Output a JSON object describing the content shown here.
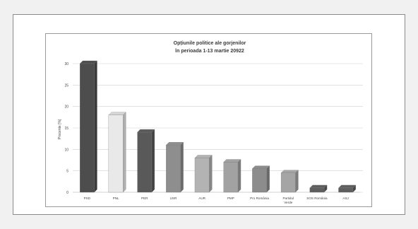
{
  "chart_data": {
    "type": "bar",
    "title_lines": [
      "Opțiunile politice ale gorjenilor",
      "în perioada 1-13 martie 20922"
    ],
    "ylabel": "Procente [%]",
    "xlabel": "",
    "ylim": [
      0,
      30
    ],
    "yticks": [
      0,
      5,
      10,
      15,
      20,
      25,
      30
    ],
    "grid": true,
    "categories": [
      "PSD",
      "PNL",
      "PER",
      "USR",
      "AUR",
      "PMP",
      "Pro România",
      "Partidul Verde",
      "SOS România",
      "ASJ"
    ],
    "category_lines": [
      [
        "PSD"
      ],
      [
        "PNL"
      ],
      [
        "PER"
      ],
      [
        "USR"
      ],
      [
        "AUR"
      ],
      [
        "PMP"
      ],
      [
        "Pro România"
      ],
      [
        "Partidul",
        "Verde"
      ],
      [
        "SOS România"
      ],
      [
        "ASJ"
      ]
    ],
    "values": [
      30,
      18,
      14,
      11,
      8,
      7,
      5.5,
      4.5,
      1,
      1
    ],
    "bar_colors": [
      "#4d4d4d",
      "#e9e9e9",
      "#595959",
      "#8e8e8e",
      "#b3b3b3",
      "#a2a2a2",
      "#8c8c8c",
      "#a5a5a5",
      "#5e5e5e",
      "#5e5e5e"
    ]
  }
}
